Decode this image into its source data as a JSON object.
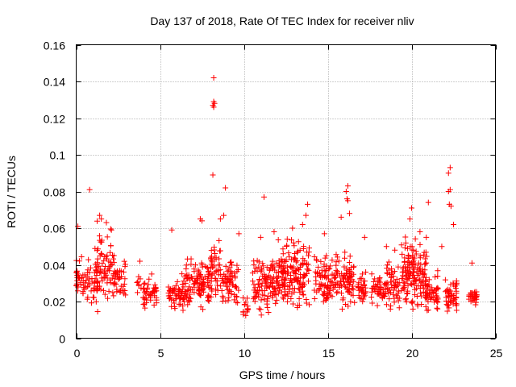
{
  "chart_data": {
    "type": "scatter",
    "title": "Day 137 of 2018, Rate Of TEC Index for receiver nliv",
    "xlabel": "GPS time / hours",
    "ylabel": "ROTI / TECUs",
    "xlim": [
      0,
      25
    ],
    "ylim": [
      0,
      0.16
    ],
    "xticks": [
      0,
      5,
      10,
      15,
      20,
      25
    ],
    "xtick_labels": [
      "0",
      "5",
      "10",
      "15",
      "20",
      "25"
    ],
    "yticks": [
      0,
      0.02,
      0.04,
      0.06,
      0.08,
      0.1,
      0.12,
      0.14,
      0.16
    ],
    "ytick_labels": [
      "0",
      "0.02",
      "0.04",
      "0.06",
      "0.08",
      "0.1",
      "0.12",
      "0.14",
      "0.16"
    ],
    "grid": true,
    "marker": "+",
    "color": "#ff0000",
    "clusters": [
      {
        "x_start": 0.0,
        "x_end": 0.8,
        "y_min": 0.012,
        "y_max": 0.05,
        "count": 45
      },
      {
        "x_start": 0.8,
        "x_end": 1.3,
        "y_min": 0.015,
        "y_max": 0.045,
        "count": 25
      },
      {
        "x_start": 1.1,
        "x_end": 2.3,
        "y_min": 0.01,
        "y_max": 0.068,
        "count": 80
      },
      {
        "x_start": 2.2,
        "x_end": 3.0,
        "y_min": 0.015,
        "y_max": 0.045,
        "count": 35
      },
      {
        "x_start": 3.6,
        "x_end": 3.9,
        "y_min": 0.018,
        "y_max": 0.043,
        "count": 8
      },
      {
        "x_start": 4.0,
        "x_end": 4.8,
        "y_min": 0.014,
        "y_max": 0.036,
        "count": 45
      },
      {
        "x_start": 5.5,
        "x_end": 6.3,
        "y_min": 0.012,
        "y_max": 0.035,
        "count": 45
      },
      {
        "x_start": 6.3,
        "x_end": 7.6,
        "y_min": 0.012,
        "y_max": 0.048,
        "count": 85
      },
      {
        "x_start": 7.3,
        "x_end": 8.1,
        "y_min": 0.012,
        "y_max": 0.046,
        "count": 45
      },
      {
        "x_start": 8.0,
        "x_end": 8.6,
        "y_min": 0.018,
        "y_max": 0.06,
        "count": 40
      },
      {
        "x_start": 8.6,
        "x_end": 9.7,
        "y_min": 0.012,
        "y_max": 0.05,
        "count": 70
      },
      {
        "x_start": 9.9,
        "x_end": 10.3,
        "y_min": 0.009,
        "y_max": 0.028,
        "count": 14
      },
      {
        "x_start": 10.5,
        "x_end": 12.0,
        "y_min": 0.008,
        "y_max": 0.05,
        "count": 110
      },
      {
        "x_start": 12.0,
        "x_end": 13.9,
        "y_min": 0.012,
        "y_max": 0.058,
        "count": 170
      },
      {
        "x_start": 14.2,
        "x_end": 15.5,
        "y_min": 0.014,
        "y_max": 0.05,
        "count": 85
      },
      {
        "x_start": 15.5,
        "x_end": 16.6,
        "y_min": 0.013,
        "y_max": 0.05,
        "count": 80
      },
      {
        "x_start": 16.8,
        "x_end": 17.3,
        "y_min": 0.013,
        "y_max": 0.04,
        "count": 35
      },
      {
        "x_start": 17.6,
        "x_end": 18.3,
        "y_min": 0.015,
        "y_max": 0.04,
        "count": 35
      },
      {
        "x_start": 18.3,
        "x_end": 19.3,
        "y_min": 0.012,
        "y_max": 0.045,
        "count": 60
      },
      {
        "x_start": 19.4,
        "x_end": 20.9,
        "y_min": 0.01,
        "y_max": 0.06,
        "count": 150
      },
      {
        "x_start": 20.8,
        "x_end": 21.6,
        "y_min": 0.012,
        "y_max": 0.04,
        "count": 50
      },
      {
        "x_start": 22.0,
        "x_end": 22.7,
        "y_min": 0.012,
        "y_max": 0.035,
        "count": 50
      },
      {
        "x_start": 23.4,
        "x_end": 23.9,
        "y_min": 0.017,
        "y_max": 0.028,
        "count": 30
      }
    ],
    "points": [
      {
        "x": 8.2,
        "y": 0.142
      },
      {
        "x": 8.2,
        "y": 0.129
      },
      {
        "x": 8.25,
        "y": 0.128
      },
      {
        "x": 8.15,
        "y": 0.127
      },
      {
        "x": 8.2,
        "y": 0.126
      },
      {
        "x": 8.15,
        "y": 0.089
      },
      {
        "x": 8.9,
        "y": 0.082
      },
      {
        "x": 0.8,
        "y": 0.081
      },
      {
        "x": 11.2,
        "y": 0.077
      },
      {
        "x": 16.2,
        "y": 0.083
      },
      {
        "x": 16.1,
        "y": 0.08
      },
      {
        "x": 16.15,
        "y": 0.076
      },
      {
        "x": 16.2,
        "y": 0.075
      },
      {
        "x": 15.8,
        "y": 0.066
      },
      {
        "x": 16.3,
        "y": 0.068
      },
      {
        "x": 22.3,
        "y": 0.093
      },
      {
        "x": 22.2,
        "y": 0.09
      },
      {
        "x": 22.3,
        "y": 0.081
      },
      {
        "x": 22.2,
        "y": 0.08
      },
      {
        "x": 22.25,
        "y": 0.073
      },
      {
        "x": 22.35,
        "y": 0.072
      },
      {
        "x": 22.5,
        "y": 0.062
      },
      {
        "x": 21.0,
        "y": 0.074
      },
      {
        "x": 20.0,
        "y": 0.071
      },
      {
        "x": 19.9,
        "y": 0.065
      },
      {
        "x": 13.8,
        "y": 0.073
      },
      {
        "x": 13.7,
        "y": 0.067
      },
      {
        "x": 7.4,
        "y": 0.065
      },
      {
        "x": 7.5,
        "y": 0.064
      },
      {
        "x": 8.8,
        "y": 0.067
      },
      {
        "x": 8.6,
        "y": 0.065
      },
      {
        "x": 0.1,
        "y": 0.061
      },
      {
        "x": 5.7,
        "y": 0.059
      },
      {
        "x": 1.4,
        "y": 0.067
      },
      {
        "x": 1.5,
        "y": 0.065
      },
      {
        "x": 1.8,
        "y": 0.063
      },
      {
        "x": 2.1,
        "y": 0.059
      },
      {
        "x": 12.9,
        "y": 0.06
      },
      {
        "x": 13.5,
        "y": 0.062
      },
      {
        "x": 14.8,
        "y": 0.057
      },
      {
        "x": 17.2,
        "y": 0.055
      },
      {
        "x": 18.5,
        "y": 0.05
      },
      {
        "x": 20.5,
        "y": 0.058
      },
      {
        "x": 11.0,
        "y": 0.055
      },
      {
        "x": 11.8,
        "y": 0.058
      },
      {
        "x": 9.7,
        "y": 0.057
      },
      {
        "x": 19.0,
        "y": 0.048
      },
      {
        "x": 21.8,
        "y": 0.05
      },
      {
        "x": 23.6,
        "y": 0.041
      },
      {
        "x": 3.8,
        "y": 0.042
      },
      {
        "x": 4.5,
        "y": 0.035
      }
    ]
  }
}
